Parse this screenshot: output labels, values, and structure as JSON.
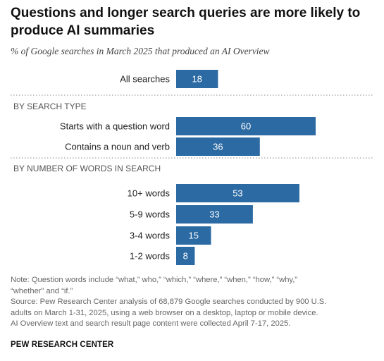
{
  "title": "Questions and longer search queries are more likely to produce AI summaries",
  "subtitle": "% of Google searches in March 2025 that produced an AI Overview",
  "chart_data": {
    "type": "bar",
    "orientation": "horizontal",
    "bar_color": "#2b6aa3",
    "separator": "dotted",
    "groups": [
      {
        "heading": "",
        "categories": [
          "All searches"
        ],
        "values": [
          18
        ]
      },
      {
        "heading": "BY SEARCH TYPE",
        "categories": [
          "Starts with a question word",
          "Contains a noun and verb"
        ],
        "values": [
          60,
          36
        ]
      },
      {
        "heading": "BY NUMBER OF WORDS IN SEARCH",
        "categories": [
          "10+ words",
          "5-9 words",
          "3-4 words",
          "1-2 words"
        ],
        "values": [
          53,
          33,
          15,
          8
        ]
      }
    ],
    "xlim": [
      0,
      100
    ]
  },
  "note_lines": [
    "Note: Question words include “what,” who,” “which,” “where,” “when,” “how,” “why,”",
    "“whether” and “if.”",
    "Source: Pew Research Center analysis of 68,879 Google searches conducted by 900 U.S.",
    "adults on March 1-31, 2025, using a web browser on a desktop, laptop or mobile device.",
    "AI Overview text and search result page content were collected April 7-17, 2025."
  ],
  "brand": "PEW RESEARCH CENTER"
}
